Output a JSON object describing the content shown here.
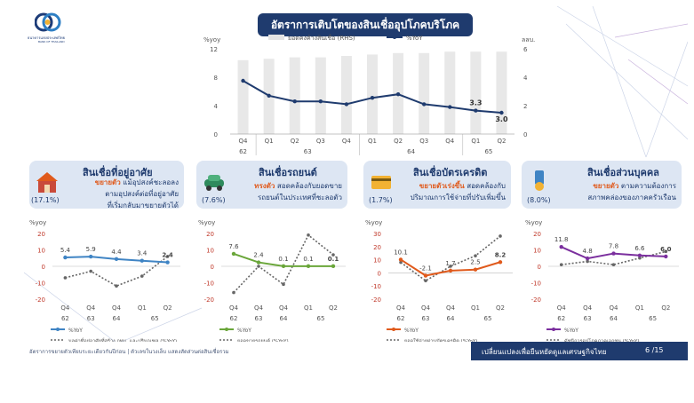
{
  "header": {
    "title": "อัตราการเติบโตของสินเชื่ออุปโภคบริโภค",
    "logo_name": "ธนาคารแห่งประเทศไทย",
    "logo_sub": "BANK OF THAILAND"
  },
  "colors": {
    "navy": "#1f3b6e",
    "orange": "#e05a1c",
    "blue": "#3f84c4",
    "green": "#6aa63a",
    "purple": "#7b2f9e",
    "dotted": "#666666"
  },
  "icons": [
    "house-icon",
    "car-icon",
    "credit-card-icon",
    "personal-loan-icon"
  ],
  "panels": [
    {
      "title": "สินเชื่อที่อยู่อาศัย",
      "pct": "(17.1%)",
      "desc_em": "ขยายตัว",
      "desc_1": " แม้อุปสงค์ชะลอลง",
      "desc_2": "ตามอุปสงค์ต่อที่อยู่อาศัย",
      "desc_3": "ที่เริ่มกลับมาขยายตัวได้"
    },
    {
      "title": "สินเชื่อรถยนต์",
      "pct": "(7.6%)",
      "desc_em": "ทรงตัว",
      "desc_1": " สอดคล้องกับยอดขาย",
      "desc_2": "รถยนต์ในประเทศที่ชะลอตัว",
      "desc_3": ""
    },
    {
      "title": "สินเชื่อบัตรเครดิต",
      "pct": "(1.7%)",
      "desc_em": "ขยายตัวเร่งขึ้น",
      "desc_1": " สอดคล้องกับ",
      "desc_2": "ปริมาณการใช้จ่ายที่ปรับเพิ่มขึ้น",
      "desc_3": ""
    },
    {
      "title": "สินเชื่อส่วนบุคคล",
      "pct": "(8.0%)",
      "desc_em": "ขยายตัว",
      "desc_1": " ตามความต้องการ",
      "desc_2": "สภาพคล่องของภาคครัวเรือน",
      "desc_3": ""
    }
  ],
  "footer": {
    "note": "อัตราการขยายตัวเทียบระยะเดียวกันปีก่อน | ตัวเลขในวงเล็บ แสดงสัดส่วนต่อสินเชื่อรวม",
    "slogan": "เปลี่ยนแปลงเพื่อยืนหยัดดูแลเศรษฐกิจไทย",
    "page": "6 /15"
  },
  "chart_data": [
    {
      "type": "bar",
      "title": "อัตราการเติบโตของสินเชื่ออุปโภคบริโภค",
      "ylabel_left": "%yoy",
      "ylabel_right": "ลลบ.",
      "ylim": [
        0,
        12
      ],
      "yticks": [
        "0",
        "4",
        "8",
        "12"
      ],
      "ylim_right": [
        0,
        6
      ],
      "yticks_right": [
        "0",
        "2",
        "4",
        "6"
      ],
      "quarters": [
        "Q4",
        "Q1",
        "Q2",
        "Q3",
        "Q4",
        "Q1",
        "Q2",
        "Q3",
        "Q4",
        "Q1",
        "Q2"
      ],
      "years": [
        {
          "label": "62",
          "from": 0,
          "to": 0
        },
        {
          "label": "63",
          "from": 1,
          "to": 4
        },
        {
          "label": "64",
          "from": 5,
          "to": 8
        },
        {
          "label": "65",
          "from": 9,
          "to": 10
        }
      ],
      "series": [
        {
          "name": "ยอดคงค้างสินเชื่อ (RHS)",
          "kind": "bar",
          "axis": "right",
          "values": [
            5.2,
            5.3,
            5.4,
            5.4,
            5.5,
            5.6,
            5.7,
            5.7,
            5.8,
            5.8,
            5.8
          ]
        },
        {
          "name": "%YoY",
          "kind": "line",
          "axis": "left",
          "values": [
            7.5,
            5.4,
            4.6,
            4.6,
            4.2,
            5.1,
            5.6,
            4.2,
            3.8,
            3.3,
            3.0
          ]
        }
      ],
      "data_labels": [
        {
          "index": 9,
          "text": "3.3"
        },
        {
          "index": 10,
          "text": "3.0"
        }
      ],
      "legend": "top"
    },
    {
      "type": "line",
      "ylabel": "%yoy",
      "ylim": [
        -20,
        20
      ],
      "yticks": [
        "20",
        "10",
        "0",
        "-10",
        "-20"
      ],
      "quarters": [
        "Q4",
        "Q4",
        "Q4",
        "Q1",
        "Q2"
      ],
      "years": [
        "62",
        "63",
        "64",
        "65",
        ""
      ],
      "series": [
        {
          "name": "%YoY",
          "color": "#3f84c4",
          "style": "solid",
          "values": [
            5.4,
            5.9,
            4.4,
            3.4,
            2.4
          ]
        },
        {
          "name": "มูลค่าที่อยู่อาศัยที่สร้าง กทม. และปริมณฑล (%YoY)",
          "color": "#666666",
          "style": "dotted",
          "values": [
            -7,
            -3,
            -12,
            -6,
            6
          ]
        }
      ],
      "data_labels": [
        "5.4",
        "5.9",
        "4.4",
        "3.4",
        "2.4"
      ]
    },
    {
      "type": "line",
      "ylabel": "%yoy",
      "ylim": [
        -20,
        20
      ],
      "yticks": [
        "20",
        "10",
        "0",
        "-10",
        "-20"
      ],
      "quarters": [
        "Q4",
        "Q4",
        "Q4",
        "Q1",
        "Q2"
      ],
      "years": [
        "62",
        "63",
        "64",
        "65",
        ""
      ],
      "series": [
        {
          "name": "%YoY",
          "color": "#6aa63a",
          "style": "solid",
          "values": [
            7.6,
            2.4,
            0.1,
            0.1,
            0.1
          ]
        },
        {
          "name": "ยอดขายรถยนต์ (%YoY)",
          "color": "#666666",
          "style": "dotted",
          "values": [
            -16,
            0,
            -11,
            19,
            7
          ]
        }
      ],
      "data_labels": [
        "7.6",
        "2.4",
        "0.1",
        "0.1",
        "0.1"
      ]
    },
    {
      "type": "line",
      "ylabel": "%yoy",
      "ylim": [
        -20,
        30
      ],
      "yticks": [
        "30",
        "20",
        "10",
        "0",
        "-10",
        "-20"
      ],
      "quarters": [
        "Q4",
        "Q4",
        "Q4",
        "Q1",
        "Q2"
      ],
      "years": [
        "62",
        "63",
        "64",
        "65",
        ""
      ],
      "series": [
        {
          "name": "%YoY",
          "color": "#e05a1c",
          "style": "solid",
          "values": [
            10.1,
            -2.1,
            1.7,
            2.5,
            8.2
          ]
        },
        {
          "name": "ยอดใช้จ่ายผ่านบัตรเครดิต (%YoY)",
          "color": "#666666",
          "style": "dotted",
          "values": [
            8,
            -6,
            5,
            13,
            28
          ]
        }
      ],
      "data_labels": [
        "10.1",
        "-2.1",
        "1.7",
        "2.5",
        "8.2"
      ]
    },
    {
      "type": "line",
      "ylabel": "%yoy",
      "ylim": [
        -20,
        20
      ],
      "yticks": [
        "20",
        "10",
        "0",
        "-10",
        "-20"
      ],
      "quarters": [
        "Q4",
        "Q4",
        "Q4",
        "Q1",
        "Q2"
      ],
      "years": [
        "62",
        "63",
        "64",
        "65",
        ""
      ],
      "series": [
        {
          "name": "%YoY",
          "color": "#7b2f9e",
          "style": "solid",
          "values": [
            11.8,
            4.8,
            7.8,
            6.6,
            6.0
          ]
        },
        {
          "name": "ดัชนีการอุปโภคภาคเอกชน (%YoY)",
          "color": "#666666",
          "style": "dotted",
          "values": [
            1,
            3,
            1,
            5,
            9
          ]
        }
      ],
      "data_labels": [
        "11.8",
        "4.8",
        "7.8",
        "6.6",
        "6.0"
      ]
    }
  ]
}
